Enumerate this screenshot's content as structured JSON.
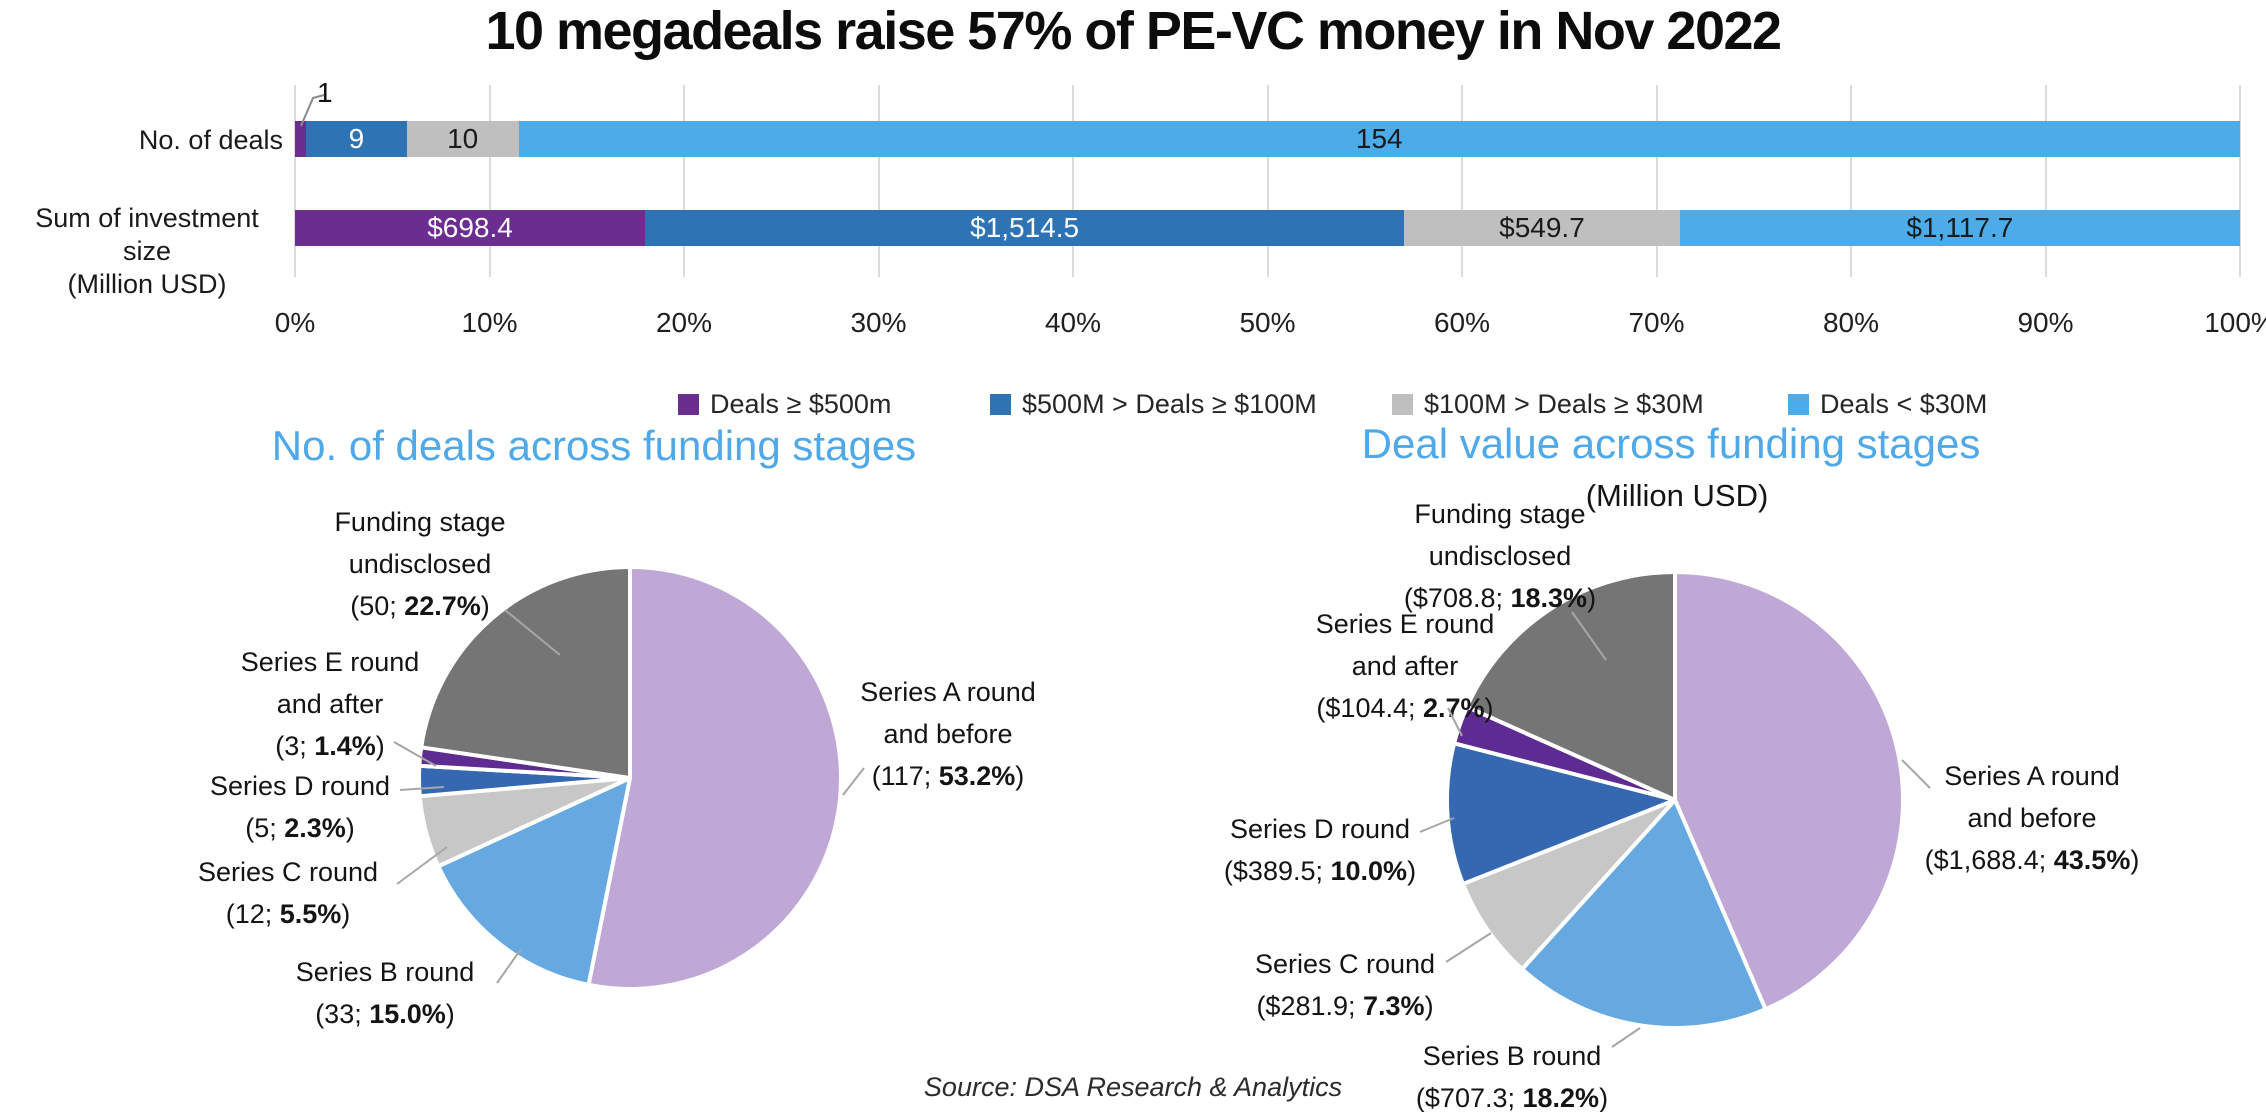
{
  "page": {
    "title": "10 megadeals raise 57% of PE-VC money in Nov 2022",
    "source": "Source: DSA Research & Analytics"
  },
  "colors": {
    "purple": "#6B2D90",
    "dark_blue": "#2E74B5",
    "gray": "#BFBFBF",
    "light_blue": "#4BACE9",
    "pie_lavender": "#BFA8D5",
    "pie_light_blue": "#66A9E0",
    "pie_light_gray": "#C7C7C7",
    "pie_dark_blue": "#3568B1",
    "pie_purple": "#5D2B91",
    "pie_dark_gray": "#757575",
    "title_blue": "#4FA9E8",
    "gridline": "#DBDBDB",
    "leader_line": "#A6A6A6"
  },
  "chart_data": [
    {
      "type": "bar",
      "orientation": "horizontal-stacked-100pct",
      "categories": [
        [
          "No. of deals"
        ],
        [
          "Sum of investment size",
          "(Million USD)"
        ]
      ],
      "x_ticks": [
        "0%",
        "10%",
        "20%",
        "30%",
        "40%",
        "50%",
        "60%",
        "70%",
        "80%",
        "90%",
        "100%"
      ],
      "legend_position": "bottom",
      "grid": true,
      "series": [
        {
          "name": "Deals ≥ $500m",
          "color": "purple",
          "label_style": "light",
          "values": [
            1,
            698.4
          ],
          "labels": [
            "1",
            "$698.4"
          ]
        },
        {
          "name": "$500M > Deals ≥ $100M",
          "color": "dark_blue",
          "label_style": "light",
          "values": [
            9,
            1514.5
          ],
          "labels": [
            "9",
            "$1,514.5"
          ]
        },
        {
          "name": "$100M > Deals ≥ $30M",
          "color": "gray",
          "label_style": "dark",
          "values": [
            10,
            549.7
          ],
          "labels": [
            "10",
            "$549.7"
          ]
        },
        {
          "name": "Deals < $30M",
          "color": "light_blue",
          "label_style": "dark",
          "values": [
            154,
            1117.7
          ],
          "labels": [
            "154",
            "$1,117.7"
          ]
        }
      ]
    },
    {
      "type": "pie",
      "title": "No. of deals across funding stages",
      "slices": [
        {
          "id": "series-a",
          "name_lines": [
            "Series A round",
            "and before"
          ],
          "value": "117",
          "pct": "53.2%",
          "share": 53.2,
          "color": "pie_lavender"
        },
        {
          "id": "series-b",
          "name_lines": [
            "Series B round"
          ],
          "value": "33",
          "pct": "15.0%",
          "share": 15.0,
          "color": "pie_light_blue"
        },
        {
          "id": "series-c",
          "name_lines": [
            "Series C round"
          ],
          "value": "12",
          "pct": "5.5%",
          "share": 5.5,
          "color": "pie_light_gray"
        },
        {
          "id": "series-d",
          "name_lines": [
            "Series D round"
          ],
          "value": "5",
          "pct": "2.3%",
          "share": 2.3,
          "color": "pie_dark_blue"
        },
        {
          "id": "series-e",
          "name_lines": [
            "Series E round",
            "and after"
          ],
          "value": "3",
          "pct": "1.4%",
          "share": 1.4,
          "color": "pie_purple"
        },
        {
          "id": "undisclosed",
          "name_lines": [
            "Funding stage",
            "undisclosed"
          ],
          "value": "50",
          "pct": "22.7%",
          "share": 22.7,
          "color": "pie_dark_gray"
        }
      ]
    },
    {
      "type": "pie",
      "title": "Deal value across funding stages",
      "subtitle": "(Million USD)",
      "slices": [
        {
          "id": "series-a",
          "name_lines": [
            "Series A round",
            "and before"
          ],
          "value": "$1,688.4",
          "pct": "43.5%",
          "share": 43.5,
          "color": "pie_lavender"
        },
        {
          "id": "series-b",
          "name_lines": [
            "Series B round"
          ],
          "value": "$707.3",
          "pct": "18.2%",
          "share": 18.2,
          "color": "pie_light_blue"
        },
        {
          "id": "series-c",
          "name_lines": [
            "Series C round"
          ],
          "value": "$281.9",
          "pct": "7.3%",
          "share": 7.3,
          "color": "pie_light_gray"
        },
        {
          "id": "series-d",
          "name_lines": [
            "Series D round"
          ],
          "value": "$389.5",
          "pct": "10.0%",
          "share": 10.0,
          "color": "pie_dark_blue"
        },
        {
          "id": "series-e",
          "name_lines": [
            "Series E round",
            "and after"
          ],
          "value": "$104.4",
          "pct": "2.7%",
          "share": 2.7,
          "color": "pie_purple"
        },
        {
          "id": "undisclosed",
          "name_lines": [
            "Funding stage",
            "undisclosed"
          ],
          "value": "$708.8",
          "pct": "18.3%",
          "share": 18.3,
          "color": "pie_dark_gray"
        }
      ]
    }
  ]
}
